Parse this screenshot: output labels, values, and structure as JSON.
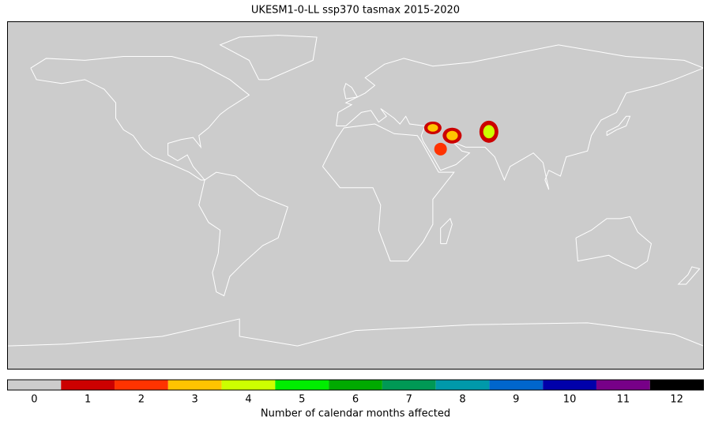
{
  "title": "UKESM1-0-LL ssp370 tasmax 2015-2020",
  "colorbar": {
    "label": "Number of calendar months affected",
    "ticks": [
      0,
      1,
      2,
      3,
      4,
      5,
      6,
      7,
      8,
      9,
      10,
      11,
      12
    ],
    "colors": [
      "#cccccc",
      "#cc0000",
      "#ff3300",
      "#ffc400",
      "#ccff00",
      "#00ee00",
      "#00aa00",
      "#009955",
      "#0099aa",
      "#0066cc",
      "#0000aa",
      "#770088",
      "#000000"
    ]
  }
}
